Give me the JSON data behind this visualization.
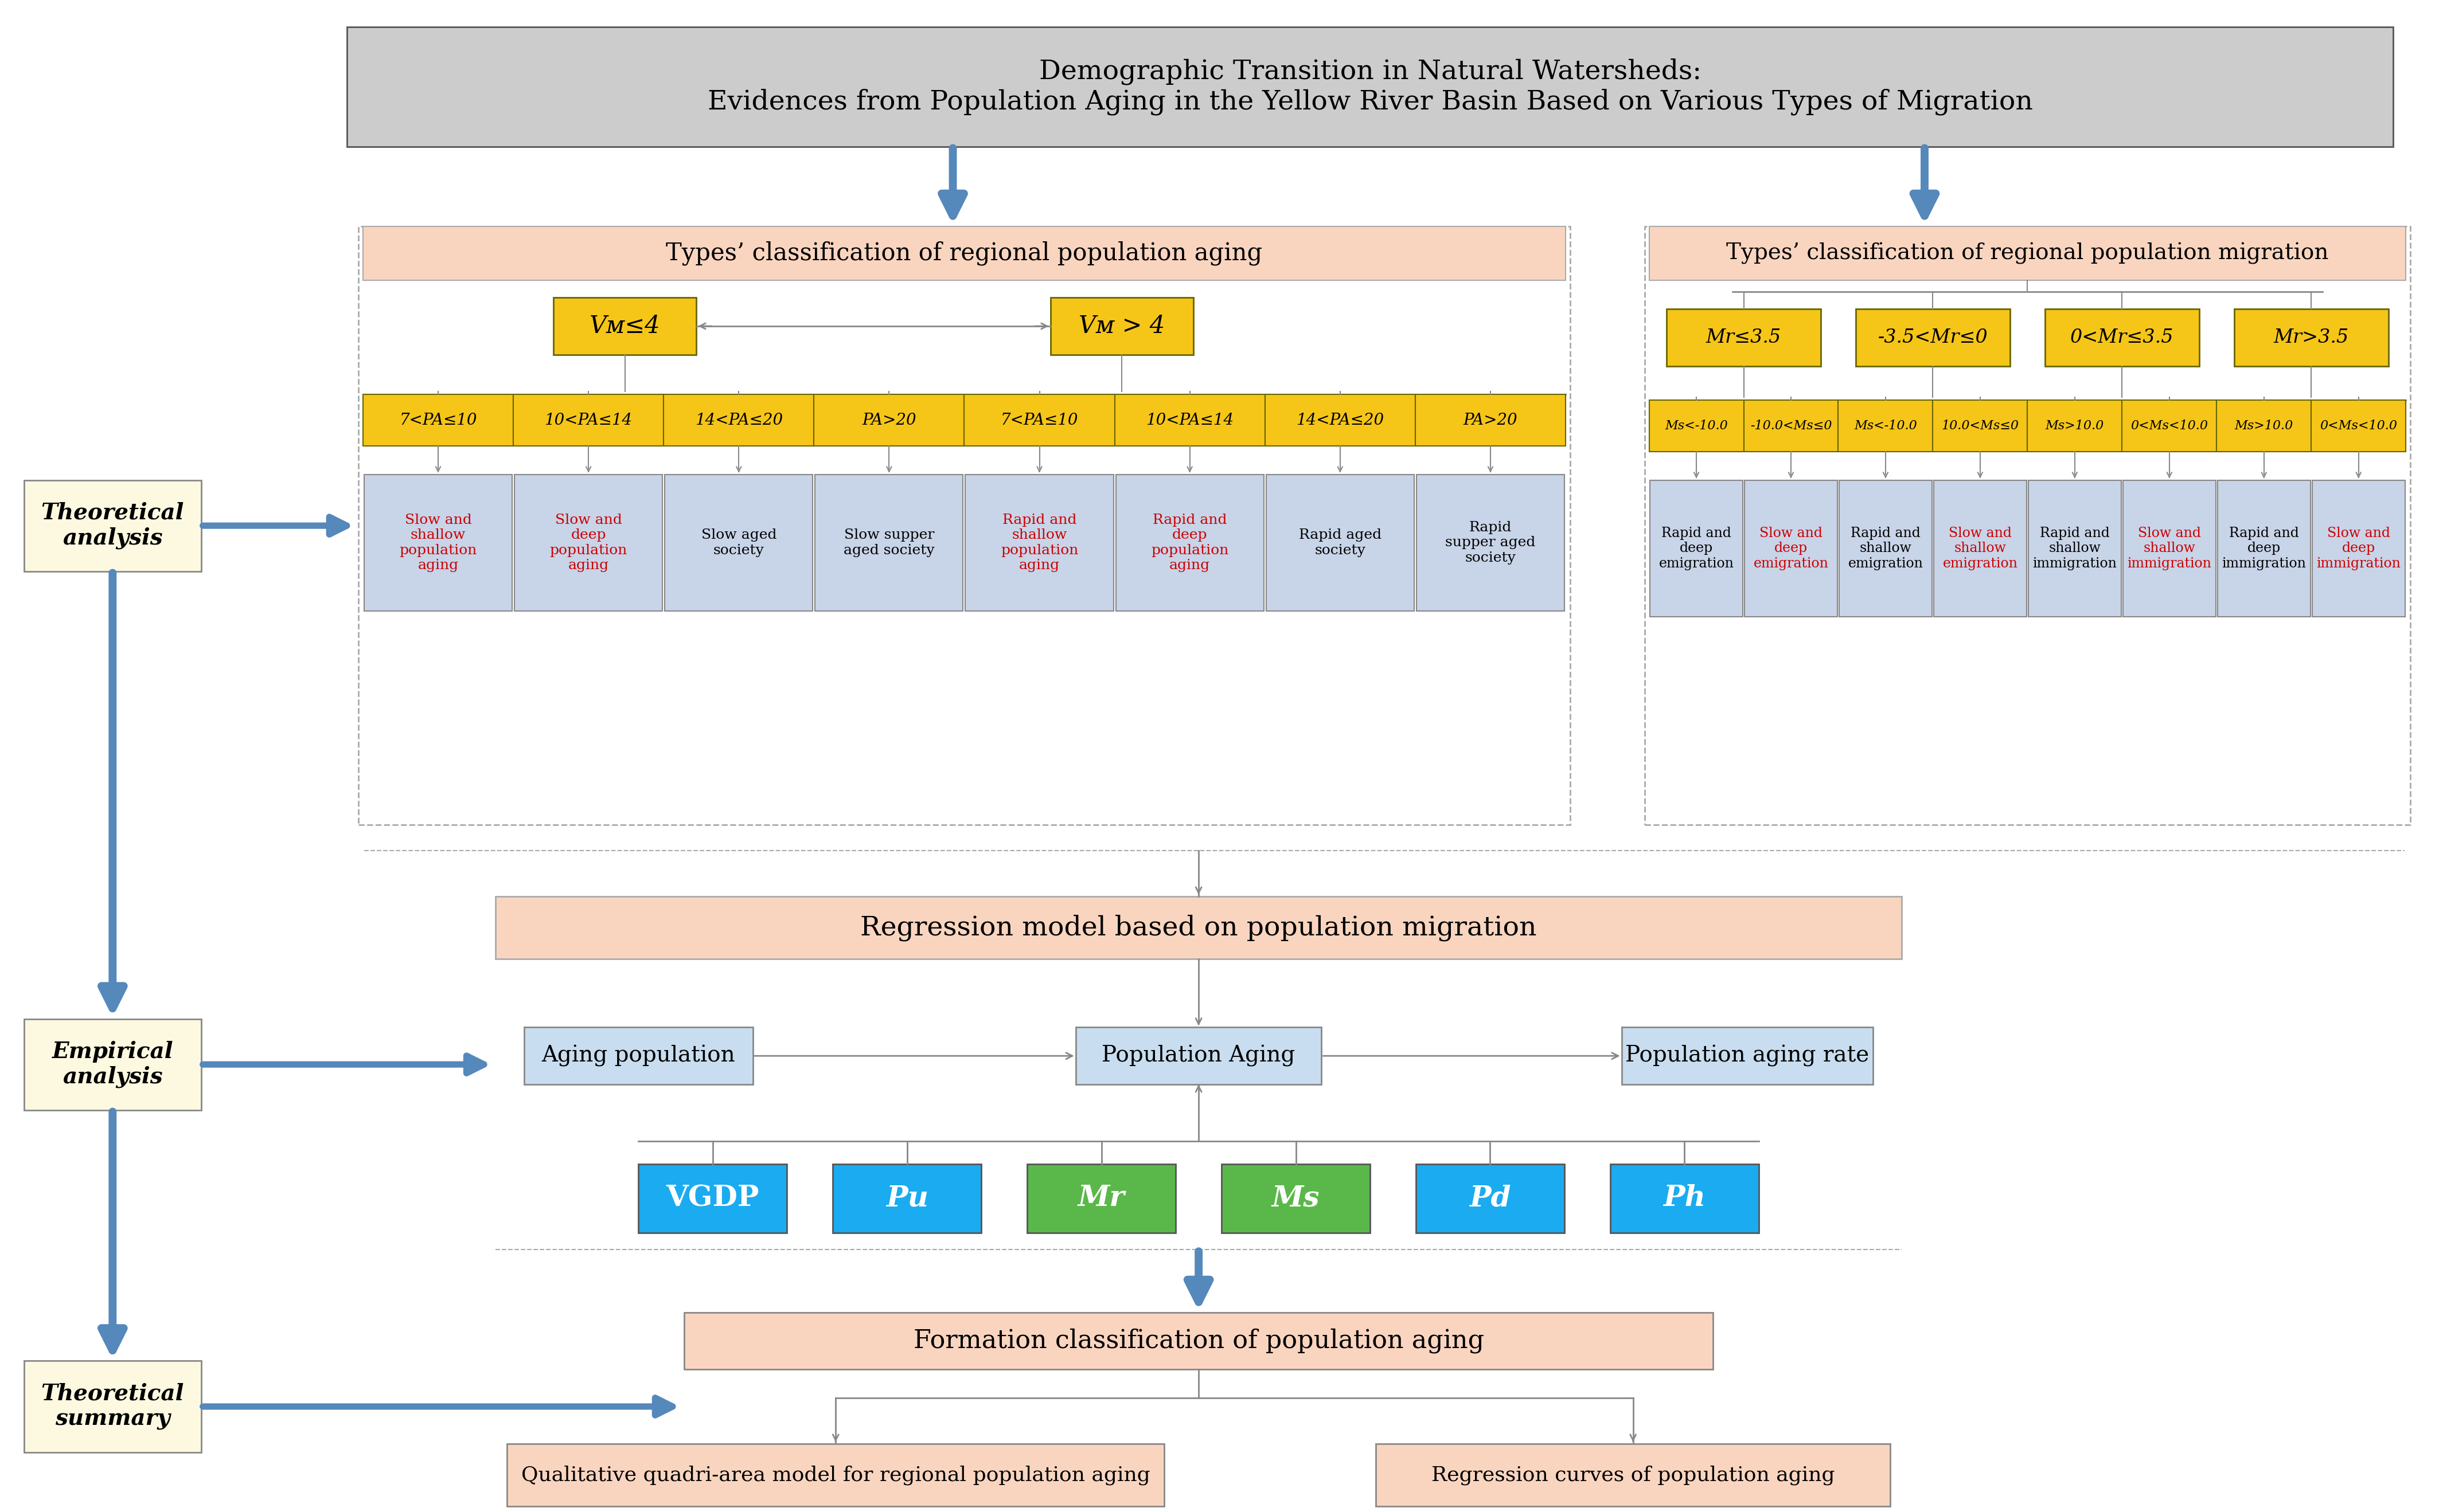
{
  "title_line1": "Demographic Transition in Natural Watersheds:",
  "title_line2": "Evidences from Population Aging in the Yellow River Basin Based on Various Types of Migration",
  "title_bg": "#cccccc",
  "title_border": "#555555",
  "left_panel_title": "Types’ classification of regional population aging",
  "right_panel_title": "Types’ classification of regional population migration",
  "panel_title_bg": "#f9d5c0",
  "yellow_box_bg": "#f5c518",
  "yellow_box_border": "#666600",
  "left_level2_labels": [
    "Vᴍ≤4",
    "Vᴍ > 4"
  ],
  "right_level2_labels": [
    "Mr≤3.5",
    "-3.5<Mr≤0",
    "0<Mr≤3.5",
    "Mr>3.5"
  ],
  "left_level3_labels": [
    "7<PA≤10",
    "10<PA≤14",
    "14<PA≤20",
    "PA>20",
    "7<PA≤10",
    "10<PA≤14",
    "14<PA≤20",
    "PA>20"
  ],
  "right_level3_labels": [
    "Ms<-10.0",
    "-10.0<Ms≤0",
    "Ms<-10.0",
    "10.0<Ms≤0",
    "Ms>10.0",
    "0<Ms<10.0",
    "Ms>10.0",
    "0<Ms<10.0"
  ],
  "left_level4_labels": [
    "Slow and\nshallow\npopulation\naging",
    "Slow and\ndeep\npopulation\naging",
    "Slow aged\nsociety",
    "Slow supper\naged society",
    "Rapid and\nshallow\npopulation\naging",
    "Rapid and\ndeep\npopulation\naging",
    "Rapid aged\nsociety",
    "Rapid\nsupper aged\nsociety"
  ],
  "right_level4_labels": [
    "Rapid and\ndeep\nemigration",
    "Slow and\ndeep\nemigration",
    "Rapid and\nshallow\nemigration",
    "Slow and\nshallow\nemigration",
    "Rapid and\nshallow\nimmigration",
    "Slow and\nshallow\nimmigration",
    "Rapid and\ndeep\nimmigration",
    "Slow and\ndeep\nimmigration"
  ],
  "left_level4_red": [
    true,
    true,
    false,
    false,
    true,
    true,
    false,
    false
  ],
  "right_level4_red": [
    false,
    true,
    false,
    true,
    false,
    true,
    false,
    true
  ],
  "level4_bg": "#c8d4e8",
  "regression_box_text": "Regression model based on population migration",
  "regression_box_bg": "#f9d5c0",
  "empirical_boxes": [
    "Aging population",
    "Population Aging",
    "Population aging rate"
  ],
  "empirical_box_bg": "#c8ddef",
  "variable_boxes": [
    {
      "text": "VGDP",
      "bg": "#1aabf0",
      "italic": false
    },
    {
      "text": "Pu",
      "bg": "#1aabf0",
      "italic": true
    },
    {
      "text": "Mr",
      "bg": "#5ab84a",
      "italic": true
    },
    {
      "text": "Ms",
      "bg": "#5ab84a",
      "italic": true
    },
    {
      "text": "Pd",
      "bg": "#1aabf0",
      "italic": true
    },
    {
      "text": "Ph",
      "bg": "#1aabf0",
      "italic": true
    }
  ],
  "formation_box_text": "Formation classification of population aging",
  "formation_box_bg": "#f9d5c0",
  "bottom_boxes": [
    "Qualitative quadri-area model for regional population aging",
    "Regression curves of population aging"
  ],
  "bottom_box_bg": "#f9d5c0",
  "left_side_labels": [
    "Theoretical\nanalysis",
    "Empirical\nanalysis",
    "Theoretical\nsummary"
  ],
  "left_side_box_bg": "#fdf9e0",
  "arrow_color": "#5588bb",
  "gray_line": "#888888"
}
